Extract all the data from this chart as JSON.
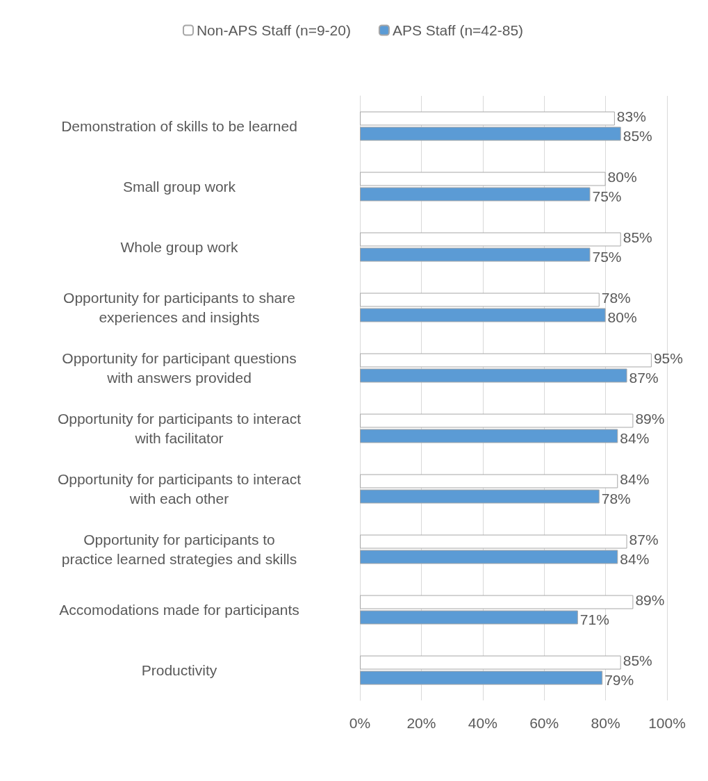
{
  "chart_data": {
    "type": "bar",
    "orientation": "horizontal",
    "legend": "top",
    "grid": "x",
    "categories": [
      "Demonstration of skills to be learned",
      "Small group work",
      "Whole group work",
      "Opportunity for participants to share\nexperiences and insights",
      "Opportunity for participant questions\nwith answers provided",
      "Opportunity for participants to interact\nwith facilitator",
      "Opportunity for participants to interact\nwith each other",
      "Opportunity for participants to\npractice learned strategies and skills",
      "Accomodations made for participants",
      "Productivity"
    ],
    "series": [
      {
        "name": "Non-APS Staff (n=9-20)",
        "color": "#ffffff",
        "values": [
          83,
          80,
          85,
          78,
          95,
          89,
          84,
          87,
          89,
          85
        ],
        "value_labels": [
          "83%",
          "80%",
          "85%",
          "78%",
          "95%",
          "89%",
          "84%",
          "87%",
          "89%",
          "85%"
        ]
      },
      {
        "name": "APS Staff (n=42-85)",
        "color": "#5b9bd5",
        "values": [
          85,
          75,
          75,
          80,
          87,
          84,
          78,
          84,
          71,
          79
        ],
        "value_labels": [
          "85%",
          "75%",
          "75%",
          "80%",
          "87%",
          "84%",
          "78%",
          "84%",
          "71%",
          "79%"
        ]
      }
    ],
    "xlim": [
      0,
      100
    ],
    "xticks": [
      {
        "value": 0,
        "label": "0%"
      },
      {
        "value": 20,
        "label": "20%"
      },
      {
        "value": 40,
        "label": "40%"
      },
      {
        "value": 60,
        "label": "60%"
      },
      {
        "value": 80,
        "label": "80%"
      },
      {
        "value": 100,
        "label": "100%"
      }
    ]
  }
}
